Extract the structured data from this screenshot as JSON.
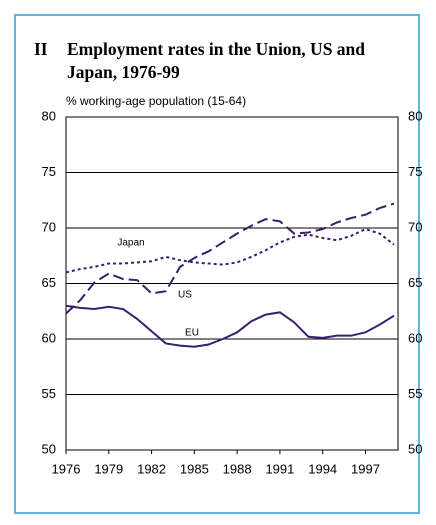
{
  "chart_data": {
    "type": "line",
    "number": "II",
    "title": "Employment rates in the Union, US and Japan, 1976-99",
    "subtitle": "% working-age population (15-64)",
    "x": [
      1976,
      1977,
      1978,
      1979,
      1980,
      1981,
      1982,
      1983,
      1984,
      1985,
      1986,
      1987,
      1988,
      1989,
      1990,
      1991,
      1992,
      1993,
      1994,
      1995,
      1996,
      1997,
      1998,
      1999
    ],
    "xlim": [
      1976,
      1999
    ],
    "xticks": [
      1976,
      1979,
      1982,
      1985,
      1988,
      1991,
      1994,
      1997
    ],
    "ylim": [
      50,
      80
    ],
    "yticks": [
      50,
      55,
      60,
      65,
      70,
      75,
      80
    ],
    "grid": true,
    "series": [
      {
        "name": "EU",
        "color": "#3b1f6e",
        "dash": "solid",
        "values": [
          63.0,
          62.8,
          62.7,
          62.9,
          62.7,
          61.8,
          60.7,
          59.6,
          59.4,
          59.3,
          59.5,
          60.0,
          60.6,
          61.6,
          62.2,
          62.4,
          61.5,
          60.2,
          60.1,
          60.3,
          60.3,
          60.6,
          61.3,
          62.1
        ]
      },
      {
        "name": "US",
        "color": "#3b1f6e",
        "dash": "long",
        "values": [
          62.3,
          63.5,
          65.1,
          65.9,
          65.4,
          65.3,
          64.1,
          64.3,
          66.5,
          67.3,
          67.9,
          68.7,
          69.5,
          70.2,
          70.8,
          70.6,
          69.5,
          69.6,
          69.9,
          70.5,
          70.9,
          71.2,
          71.8,
          72.2
        ]
      },
      {
        "name": "Japan",
        "color": "#3b1f6e",
        "dash": "short",
        "values": [
          66.0,
          66.3,
          66.5,
          66.8,
          66.8,
          66.9,
          67.0,
          67.4,
          67.1,
          66.9,
          66.8,
          66.7,
          66.9,
          67.4,
          68.0,
          68.7,
          69.2,
          69.4,
          69.1,
          68.9,
          69.3,
          69.9,
          69.5,
          68.5
        ]
      }
    ]
  }
}
